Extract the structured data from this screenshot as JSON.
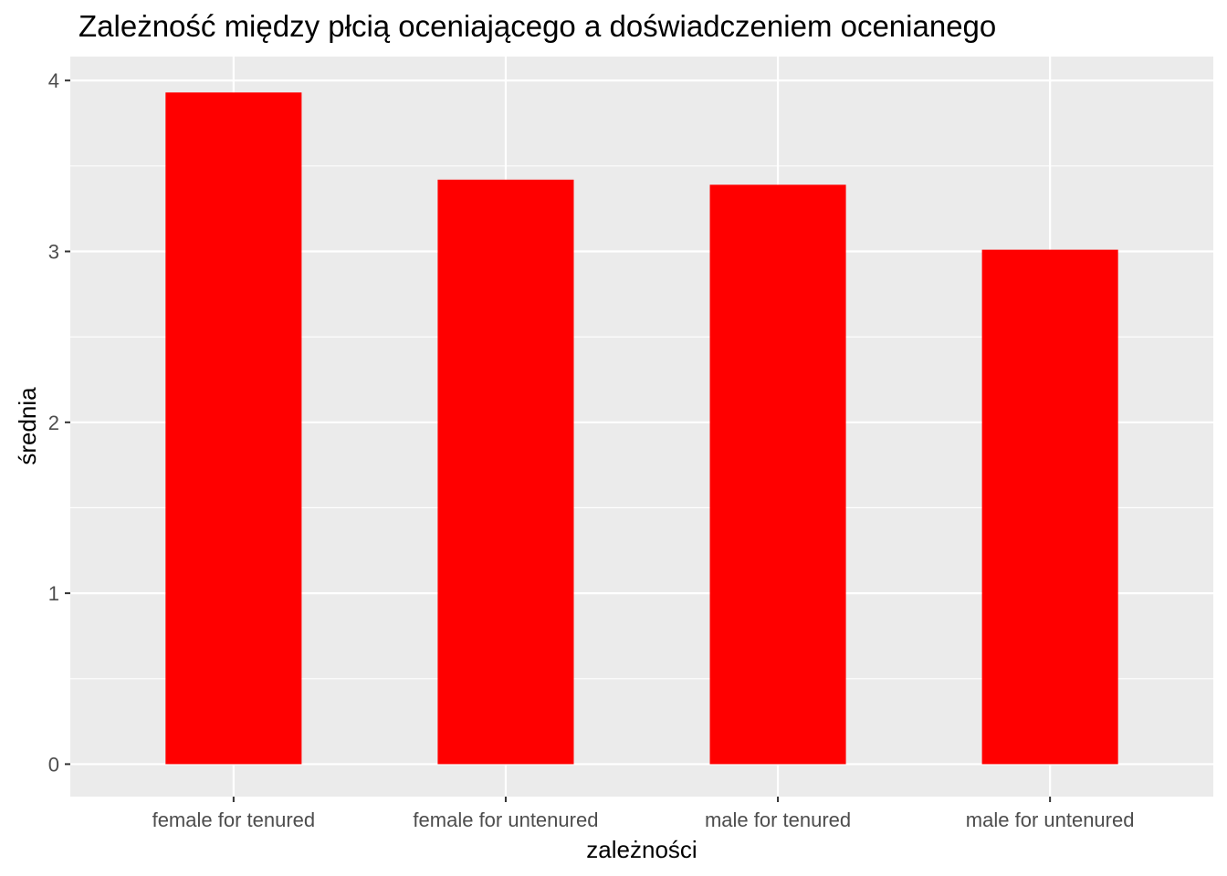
{
  "chart_data": {
    "type": "bar",
    "title": "Zależność między płcią oceniającego a doświadczeniem ocenianego",
    "xlabel": "zależności",
    "ylabel": "średnia",
    "categories": [
      "female for tenured",
      "female for untenured",
      "male for tenured",
      "male for untenured"
    ],
    "values": [
      3.93,
      3.42,
      3.39,
      3.01
    ],
    "ylim": [
      -0.19,
      4.14
    ],
    "yticks": [
      0,
      1,
      2,
      3,
      4
    ],
    "grid": true,
    "legend": "none",
    "colors": {
      "bar": "#ff0000",
      "panel": "#ebebeb",
      "grid": "#ffffff"
    }
  }
}
